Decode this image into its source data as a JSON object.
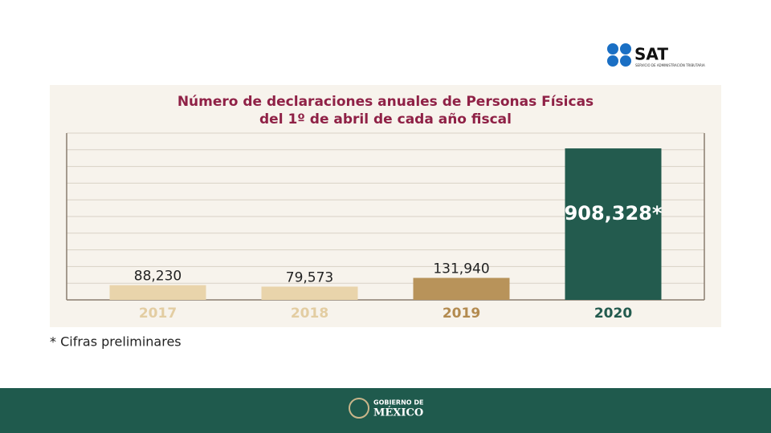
{
  "chart_data": {
    "type": "bar",
    "title": [
      "Número de declaraciones anuales de Personas Físicas",
      "del 1º de abril de cada año fiscal"
    ],
    "categories": [
      "2017",
      "2018",
      "2019",
      "2020"
    ],
    "values": [
      88230,
      79573,
      131940,
      908328
    ],
    "value_labels": [
      "88,230",
      "79,573",
      "131,940",
      "908,328*"
    ],
    "colors": [
      "#e9d4ab",
      "#e9d4ab",
      "#b8935a",
      "#235b4e"
    ],
    "category_colors": [
      "#e3cda2",
      "#e3cda2",
      "#b38b50",
      "#235b4e"
    ],
    "ylim": [
      0,
      1000000
    ],
    "yticks": [
      0,
      100000,
      200000,
      300000,
      400000,
      500000,
      600000,
      700000,
      800000,
      900000,
      1000000
    ],
    "grid": true
  },
  "note": "* Cifras preliminares",
  "logo": {
    "name": "SAT",
    "subtitle": "SERVICIO DE ADMINISTRACIÓN TRIBUTARIA"
  },
  "footer": {
    "line1": "GOBIERNO DE",
    "line2": "MÉXICO"
  }
}
